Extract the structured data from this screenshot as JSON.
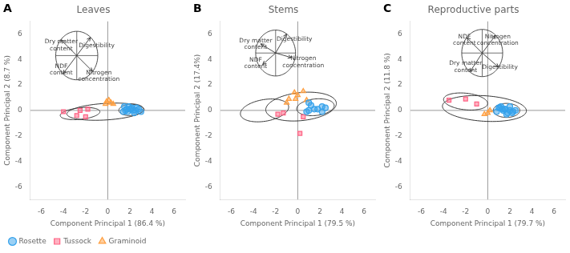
{
  "chart_data": [
    {
      "type": "scatter",
      "panel_label": "A",
      "title": "Leaves",
      "xlabel": "Component Principal 1 (86.4 %)",
      "ylabel": "Component Principal 2 (8.7 %)",
      "xlim": [
        -7,
        7
      ],
      "ylim": [
        -7,
        7
      ],
      "xticks": [
        -6,
        -4,
        -2,
        0,
        2,
        4,
        6
      ],
      "yticks": [
        -6,
        -4,
        -2,
        0,
        2,
        4,
        6
      ],
      "grid": false,
      "legend": "lower left",
      "reference_lines": {
        "x": 0,
        "y": 0
      },
      "series": [
        {
          "name": "Rosette",
          "marker": "circle",
          "values": [
            [
              1.5,
              0.3
            ],
            [
              2.0,
              0.1
            ],
            [
              2.5,
              0.0
            ],
            [
              1.8,
              -0.1
            ],
            [
              2.2,
              0.2
            ],
            [
              1.6,
              0.0
            ],
            [
              2.1,
              0.15
            ],
            [
              2.4,
              -0.2
            ],
            [
              1.9,
              0.3
            ],
            [
              2.3,
              0.0
            ],
            [
              1.7,
              0.1
            ],
            [
              2.6,
              0.2
            ],
            [
              1.4,
              -0.1
            ],
            [
              2.8,
              0.1
            ],
            [
              3.0,
              -0.1
            ]
          ]
        },
        {
          "name": "Tussock",
          "marker": "square",
          "values": [
            [
              -4.0,
              -0.1
            ],
            [
              -2.8,
              -0.4
            ],
            [
              -2.5,
              0.0
            ],
            [
              -2.0,
              -0.5
            ],
            [
              -1.8,
              0.1
            ]
          ]
        },
        {
          "name": "Graminoid",
          "marker": "triangle",
          "values": [
            [
              -0.2,
              0.5
            ],
            [
              0.1,
              0.8
            ],
            [
              0.3,
              0.6
            ],
            [
              0.5,
              0.5
            ],
            [
              -0.1,
              0.7
            ]
          ]
        }
      ],
      "ellipses": [
        {
          "cx": -2.5,
          "cy": -0.25,
          "rx": 1.8,
          "ry": 0.45,
          "angle": 5
        },
        {
          "cx": -0.2,
          "cy": -0.1,
          "rx": 3.5,
          "ry": 0.65,
          "angle": 3
        },
        {
          "cx": 2.1,
          "cy": 0.05,
          "rx": 1.1,
          "ry": 0.45,
          "angle": 3
        }
      ],
      "biplot": {
        "center": [
          -2.8,
          4.3
        ],
        "r": 1.9,
        "arrows": [
          {
            "dx": -0.75,
            "dy": 0.65,
            "label": "Dry matter\ncontent",
            "x": -4.2,
            "y": 5.1
          },
          {
            "dx": 0.65,
            "dy": 0.75,
            "label": "Digestibility",
            "x": -1.0,
            "y": 5.1
          },
          {
            "dx": -0.65,
            "dy": -0.75,
            "label": "NDF\ncontent",
            "x": -4.2,
            "y": 3.2
          },
          {
            "dx": 0.75,
            "dy": -0.65,
            "label": "Nitrogen\nconcentration",
            "x": -0.8,
            "y": 2.7
          }
        ]
      }
    },
    {
      "type": "scatter",
      "panel_label": "B",
      "title": "Stems",
      "xlabel": "Component Principal 1 (79.5 %)",
      "ylabel": "Component Principal 2 (17.4%)",
      "xlim": [
        -7,
        7
      ],
      "ylim": [
        -7,
        7
      ],
      "xticks": [
        -6,
        -4,
        -2,
        0,
        2,
        4,
        6
      ],
      "yticks": [
        -6,
        -4,
        -2,
        0,
        2,
        4,
        6
      ],
      "grid": false,
      "reference_lines": {
        "x": 0,
        "y": 0
      },
      "series": [
        {
          "name": "Rosette",
          "marker": "circle",
          "values": [
            [
              1.0,
              0.6
            ],
            [
              2.2,
              0.3
            ],
            [
              1.5,
              0.1
            ],
            [
              2.5,
              0.2
            ],
            [
              1.2,
              0.4
            ],
            [
              0.8,
              -0.1
            ],
            [
              1.8,
              0.1
            ],
            [
              2.2,
              -0.1
            ],
            [
              1.0,
              0.0
            ]
          ]
        },
        {
          "name": "Tussock",
          "marker": "square",
          "values": [
            [
              -1.8,
              -0.3
            ],
            [
              -1.3,
              -0.2
            ],
            [
              0.2,
              -1.8
            ],
            [
              0.5,
              -0.5
            ]
          ]
        },
        {
          "name": "Graminoid",
          "marker": "triangle",
          "values": [
            [
              -0.8,
              0.9
            ],
            [
              -0.3,
              1.4
            ],
            [
              0.0,
              1.2
            ],
            [
              0.5,
              1.5
            ],
            [
              -0.2,
              0.9
            ],
            [
              0.8,
              0.8
            ],
            [
              -1.0,
              0.6
            ]
          ]
        }
      ],
      "ellipses": [
        {
          "cx": -3.0,
          "cy": 0.0,
          "rx": 2.2,
          "ry": 0.85,
          "angle": 8
        },
        {
          "cx": 0.3,
          "cy": 0.3,
          "rx": 3.2,
          "ry": 1.1,
          "angle": 5
        },
        {
          "cx": 1.6,
          "cy": 0.25,
          "rx": 1.7,
          "ry": 0.65,
          "angle": 5
        }
      ],
      "biplot": {
        "center": [
          -2.0,
          4.5
        ],
        "r": 1.8,
        "arrows": [
          {
            "dx": -0.75,
            "dy": 0.4,
            "label": "Dry matter\ncontent",
            "x": -3.8,
            "y": 5.2
          },
          {
            "dx": 0.55,
            "dy": 0.83,
            "label": "Digestibility",
            "x": -0.3,
            "y": 5.6
          },
          {
            "dx": -0.65,
            "dy": -0.5,
            "label": "NDF\ncontent",
            "x": -3.8,
            "y": 3.7
          },
          {
            "dx": 0.8,
            "dy": -0.2,
            "label": "Nitrogen\nconcentration",
            "x": 0.5,
            "y": 3.8
          }
        ]
      }
    },
    {
      "type": "scatter",
      "panel_label": "C",
      "title": "Reproductive parts",
      "xlabel": "Component Principal 1 (79.7 %)",
      "ylabel": "Component Principal 2 (11.8 %)",
      "xlim": [
        -7,
        7
      ],
      "ylim": [
        -7,
        7
      ],
      "xticks": [
        -6,
        -4,
        -2,
        0,
        2,
        4,
        6
      ],
      "yticks": [
        -6,
        -4,
        -2,
        0,
        2,
        4,
        6
      ],
      "grid": false,
      "reference_lines": {
        "x": 0,
        "y": 0
      },
      "series": [
        {
          "name": "Rosette",
          "marker": "circle",
          "values": [
            [
              1.0,
              0.2
            ],
            [
              1.5,
              0.1
            ],
            [
              1.8,
              -0.2
            ],
            [
              1.2,
              0.3
            ],
            [
              2.0,
              0.0
            ],
            [
              0.8,
              -0.1
            ],
            [
              1.6,
              0.1
            ],
            [
              2.2,
              -0.2
            ],
            [
              1.3,
              0.1
            ],
            [
              2.5,
              0.0
            ],
            [
              1.7,
              -0.3
            ],
            [
              2.0,
              0.3
            ],
            [
              1.4,
              0.0
            ],
            [
              2.3,
              -0.1
            ],
            [
              1.1,
              0.2
            ]
          ]
        },
        {
          "name": "Tussock",
          "marker": "square",
          "values": [
            [
              -3.5,
              0.8
            ],
            [
              -2.0,
              0.9
            ],
            [
              -1.0,
              0.5
            ]
          ]
        },
        {
          "name": "Graminoid",
          "marker": "triangle",
          "values": [
            [
              0.0,
              -0.2
            ],
            [
              0.2,
              0.0
            ],
            [
              -0.3,
              -0.3
            ]
          ]
        }
      ],
      "ellipses": [
        {
          "cx": -2.0,
          "cy": 0.7,
          "rx": 2.0,
          "ry": 0.65,
          "angle": -5
        },
        {
          "cx": -0.3,
          "cy": 0.15,
          "rx": 3.8,
          "ry": 1.0,
          "angle": -3
        },
        {
          "cx": 1.7,
          "cy": 0.0,
          "rx": 1.2,
          "ry": 0.55,
          "angle": 0
        }
      ],
      "biplot": {
        "center": [
          -0.5,
          4.5
        ],
        "r": 1.85,
        "arrows": [
          {
            "dx": -0.75,
            "dy": 0.65,
            "label": "NDF\ncontent",
            "x": -2.1,
            "y": 5.5
          },
          {
            "dx": 0.65,
            "dy": 0.75,
            "label": "Nitrogen\nconcentration",
            "x": 0.9,
            "y": 5.5
          },
          {
            "dx": -0.6,
            "dy": -0.8,
            "label": "Dry matter\ncontent",
            "x": -2.0,
            "y": 3.4
          },
          {
            "dx": 0.8,
            "dy": -0.6,
            "label": "Digestibility",
            "x": 1.1,
            "y": 3.4
          }
        ]
      }
    }
  ]
}
